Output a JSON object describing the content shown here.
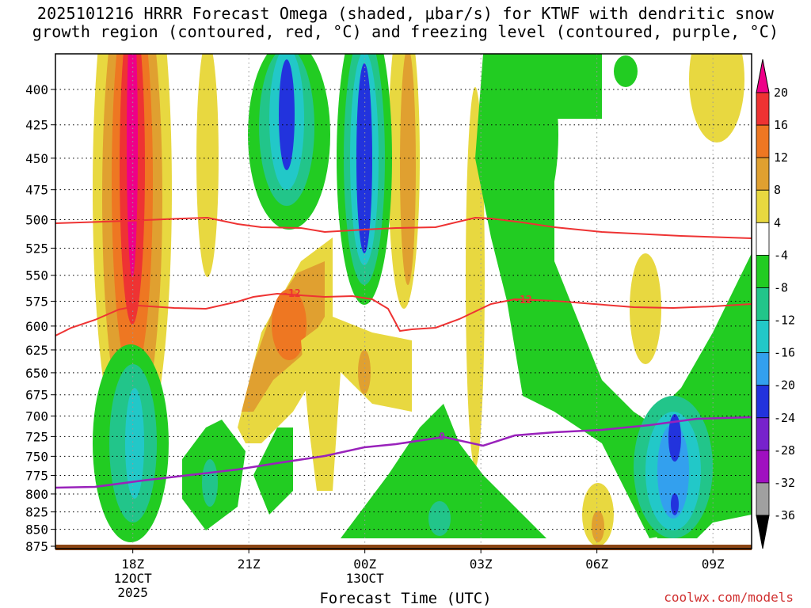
{
  "title": {
    "line1": "2025101216 HRRR Forecast Omega (shaded, μbar/s) for KTWF with dendritic snow",
    "line2": "growth region (contoured, red, °C) and freezing level (contoured, purple, °C)"
  },
  "x_axis_title": "Forecast Time (UTC)",
  "credit": "coolwx.com/models",
  "chart_data": {
    "type": "heatmap",
    "title": "2025101216 HRRR Forecast Omega (shaded, μbar/s) for KTWF with dendritic snow growth region (contoured, red, °C) and freezing level (contoured, purple, °C)",
    "xlabel": "Forecast Time (UTC)",
    "ylabel": "",
    "x_range_hours_utc_from_12z_12oct": [
      4,
      22
    ],
    "y_levels_mb": [
      400,
      425,
      450,
      475,
      500,
      525,
      550,
      575,
      600,
      625,
      650,
      675,
      700,
      725,
      750,
      775,
      800,
      825,
      850,
      875
    ],
    "y_scale": "pressure (log-like), top 400 mb, bottom 875 mb",
    "x_ticks": [
      {
        "hour": 6,
        "lines": [
          "18Z",
          "12OCT",
          "2025"
        ]
      },
      {
        "hour": 9,
        "lines": [
          "21Z"
        ]
      },
      {
        "hour": 12,
        "lines": [
          "00Z",
          "13OCT"
        ]
      },
      {
        "hour": 15,
        "lines": [
          "03Z"
        ]
      },
      {
        "hour": 18,
        "lines": [
          "06Z"
        ]
      },
      {
        "hour": 21,
        "lines": [
          "09Z"
        ]
      }
    ],
    "colorbar": {
      "label_values": [
        20,
        16,
        12,
        8,
        4,
        -4,
        -8,
        -12,
        -16,
        -20,
        -24,
        -28,
        -32,
        -36
      ],
      "colors": [
        "#ee0088",
        "#ee3333",
        "#ee7722",
        "#e0a030",
        "#e8d840",
        "#ffffff",
        "#22cc22",
        "#22c58a",
        "#22c8c8",
        "#33a0ee",
        "#2233dd",
        "#7722cc",
        "#a010c0",
        "#a0a0a0",
        "#000000"
      ]
    },
    "contours": [
      {
        "name": "-12",
        "color": "#ee3333",
        "label": "-12"
      },
      {
        "name": "-12",
        "color": "#ee3333",
        "label": "-12"
      },
      {
        "name": "0",
        "color": "#9922bb",
        "label": "0"
      }
    ],
    "grid": true,
    "ground_color": "#8b4513"
  },
  "colors": {
    "dgz": "#ee3333",
    "freezing": "#9922bb",
    "grid": "#000000",
    "ground": "#8b4513"
  }
}
